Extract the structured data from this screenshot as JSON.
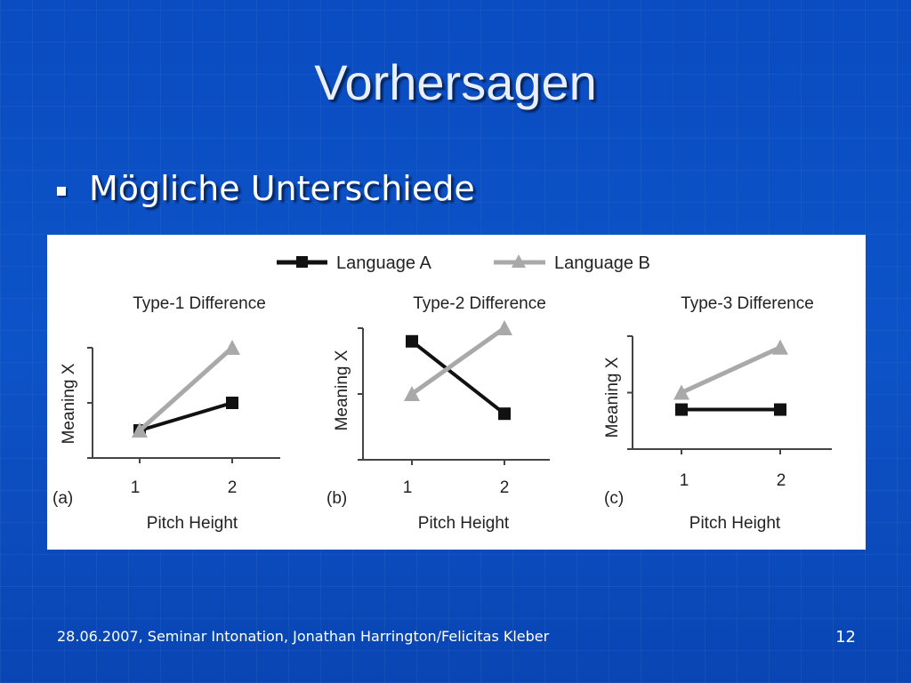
{
  "slide": {
    "title": "Vorhersagen",
    "bullet": "Mögliche Unterschiede",
    "footer": "28.06.2007, Seminar Intonation, Jonathan Harrington/Felicitas Kleber",
    "page_number": "12"
  },
  "colors": {
    "background": "#0c4fc4",
    "language_a": "#111111",
    "language_b": "#a9a9a9"
  },
  "legend": [
    {
      "name": "Language A",
      "marker": "square"
    },
    {
      "name": "Language B",
      "marker": "triangle"
    }
  ],
  "chart_data": [
    {
      "type": "line",
      "panel": "(a)",
      "title": "Type-1 Difference",
      "xlabel": "Pitch Height",
      "ylabel": "Meaning X",
      "categories": [
        "1",
        "2"
      ],
      "ylim": [
        0,
        4
      ],
      "series": [
        {
          "name": "Language A",
          "values": [
            0.5,
            1.0
          ]
        },
        {
          "name": "Language B",
          "values": [
            0.5,
            2.0
          ]
        }
      ]
    },
    {
      "type": "line",
      "panel": "(b)",
      "title": "Type-2 Difference",
      "xlabel": "Pitch Height",
      "ylabel": "Meaning X",
      "categories": [
        "1",
        "2"
      ],
      "ylim": [
        0,
        4
      ],
      "series": [
        {
          "name": "Language A",
          "values": [
            1.8,
            0.7
          ]
        },
        {
          "name": "Language B",
          "values": [
            1.0,
            2.0
          ]
        }
      ]
    },
    {
      "type": "line",
      "panel": "(c)",
      "title": "Type-3 Difference",
      "xlabel": "Pitch Height",
      "ylabel": "Meaning X",
      "categories": [
        "1",
        "2"
      ],
      "ylim": [
        0,
        4
      ],
      "series": [
        {
          "name": "Language A",
          "values": [
            0.7,
            0.7
          ]
        },
        {
          "name": "Language B",
          "values": [
            1.0,
            1.8
          ]
        }
      ]
    }
  ]
}
